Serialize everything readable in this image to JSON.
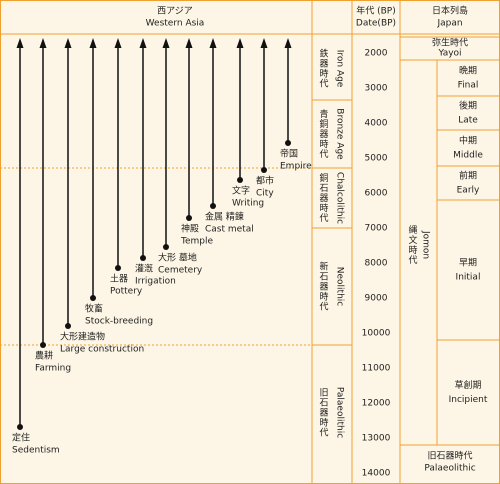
{
  "header": {
    "west_asia": {
      "ja": "西アジア",
      "en": "Western Asia"
    },
    "date": {
      "ja": "年代 (BP)",
      "en": "Date(BP)"
    },
    "japan": {
      "ja": "日本列島",
      "en": "Japan"
    }
  },
  "years": [
    "2000",
    "3000",
    "4000",
    "5000",
    "6000",
    "7000",
    "8000",
    "9000",
    "10000",
    "11000",
    "12000",
    "13000",
    "14000"
  ],
  "periods": [
    {
      "ja": "鉄器時代",
      "en": "Iron Age"
    },
    {
      "ja": "青銅器時代",
      "en": "Bronze Age"
    },
    {
      "ja": "銅石器時代",
      "en": "Chalcolithic"
    },
    {
      "ja": "新石器時代",
      "en": "Neolithic"
    },
    {
      "ja": "旧石器時代",
      "en": "Palaeolithic"
    }
  ],
  "events": [
    {
      "ja": "定住",
      "en": "Sedentism"
    },
    {
      "ja": "農耕",
      "en": "Farming"
    },
    {
      "ja": "大形建造物",
      "en": "Large construction"
    },
    {
      "ja": "牧畜",
      "en": "Stock-breeding"
    },
    {
      "ja": "土器",
      "en": "Pottery"
    },
    {
      "ja": "灌漑",
      "en": "Irrigation"
    },
    {
      "ja": "大形 墓地",
      "en": "Cemetery"
    },
    {
      "ja": "神殿",
      "en": "Temple"
    },
    {
      "ja": "金属 精錬",
      "en": "Cast metal"
    },
    {
      "ja": "文字",
      "en": "Writing"
    },
    {
      "ja": "都市",
      "en": "City"
    },
    {
      "ja": "帝国",
      "en": "Empire"
    }
  ],
  "japan": {
    "yayoi": {
      "ja": "弥生時代",
      "en": "Yayoi"
    },
    "jomon": {
      "ja": "縄文時代",
      "en": "Jomon"
    },
    "jomon_phases": [
      {
        "ja": "晩期",
        "en": "Final"
      },
      {
        "ja": "後期",
        "en": "Late"
      },
      {
        "ja": "中期",
        "en": "Middle"
      },
      {
        "ja": "前期",
        "en": "Early"
      },
      {
        "ja": "早期",
        "en": "Initial"
      },
      {
        "ja": "草創期",
        "en": "Incipient"
      }
    ],
    "palaeolithic": {
      "ja": "旧石器時代",
      "en": "Palaeolithic"
    }
  }
}
